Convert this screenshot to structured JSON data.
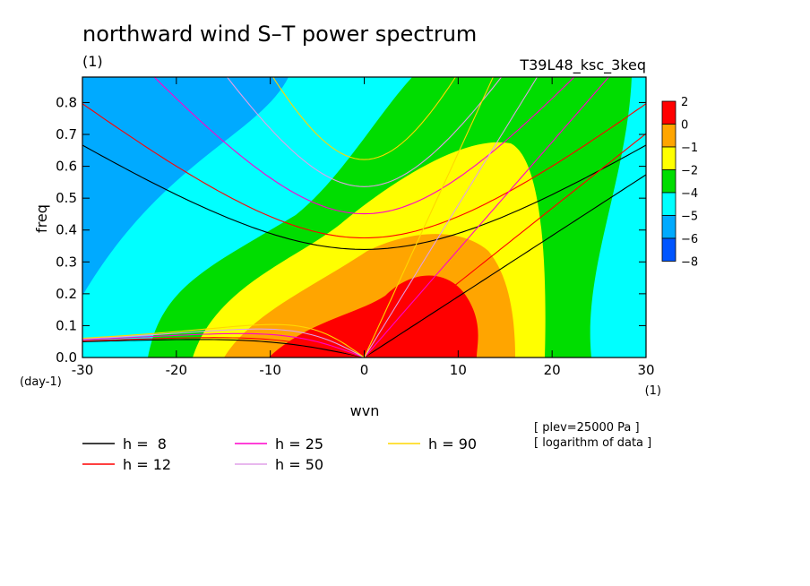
{
  "chart_data": {
    "type": "heatmap",
    "title": "northward wind S–T power spectrum",
    "subtitle_left": "(1)",
    "subtitle_right": "T39L48_ksc_3keq",
    "xlabel": "wvn",
    "ylabel": "freq",
    "x_unit": "(1)",
    "y_unit": "(day-1)",
    "xlim": [
      -30,
      30
    ],
    "ylim": [
      0.0,
      0.88
    ],
    "x_ticks": [
      "-30",
      "-20",
      "-10",
      "0",
      "10",
      "20",
      "30"
    ],
    "x_tick_values": [
      -30,
      -20,
      -10,
      0,
      10,
      20,
      30
    ],
    "y_ticks": [
      "0.0",
      "0.1",
      "0.2",
      "0.3",
      "0.4",
      "0.5",
      "0.6",
      "0.7",
      "0.8"
    ],
    "y_tick_values": [
      0.0,
      0.1,
      0.2,
      0.3,
      0.4,
      0.5,
      0.6,
      0.7,
      0.8
    ],
    "colorbar": {
      "levels": [
        "2",
        "0",
        "−1",
        "−2",
        "−4",
        "−5",
        "−6",
        "−8"
      ],
      "colors": [
        "#ff0000",
        "#ffa500",
        "#ffff00",
        "#00dd00",
        "#00ffff",
        "#00aaff",
        "#0055ff"
      ]
    },
    "contour_fill": {
      "bands": [
        {
          "level": "-6..-8",
          "color": "#0055ff"
        },
        {
          "level": "-5..-6",
          "color": "#00aaff"
        },
        {
          "level": "-4..-5",
          "color": "#00ffff"
        },
        {
          "level": "-2..-4",
          "color": "#00dd00"
        },
        {
          "level": "-1..-2",
          "color": "#ffff00"
        },
        {
          "level": "0..-1",
          "color": "#ffa500"
        },
        {
          "level": "2..0",
          "color": "#ff0000"
        }
      ]
    },
    "dispersion_curves": [
      {
        "name": "h =  8",
        "h": 8,
        "color": "#000000"
      },
      {
        "name": "h = 12",
        "h": 12,
        "color": "#ff0000"
      },
      {
        "name": "h = 25",
        "h": 25,
        "color": "#ff00cc"
      },
      {
        "name": "h = 50",
        "h": 50,
        "color": "#e0a0e8"
      },
      {
        "name": "h = 90",
        "h": 90,
        "color": "#ffd700"
      }
    ],
    "annotations": [
      "[ plev=25000 Pa ]",
      "[ logarithm of data ]"
    ]
  }
}
